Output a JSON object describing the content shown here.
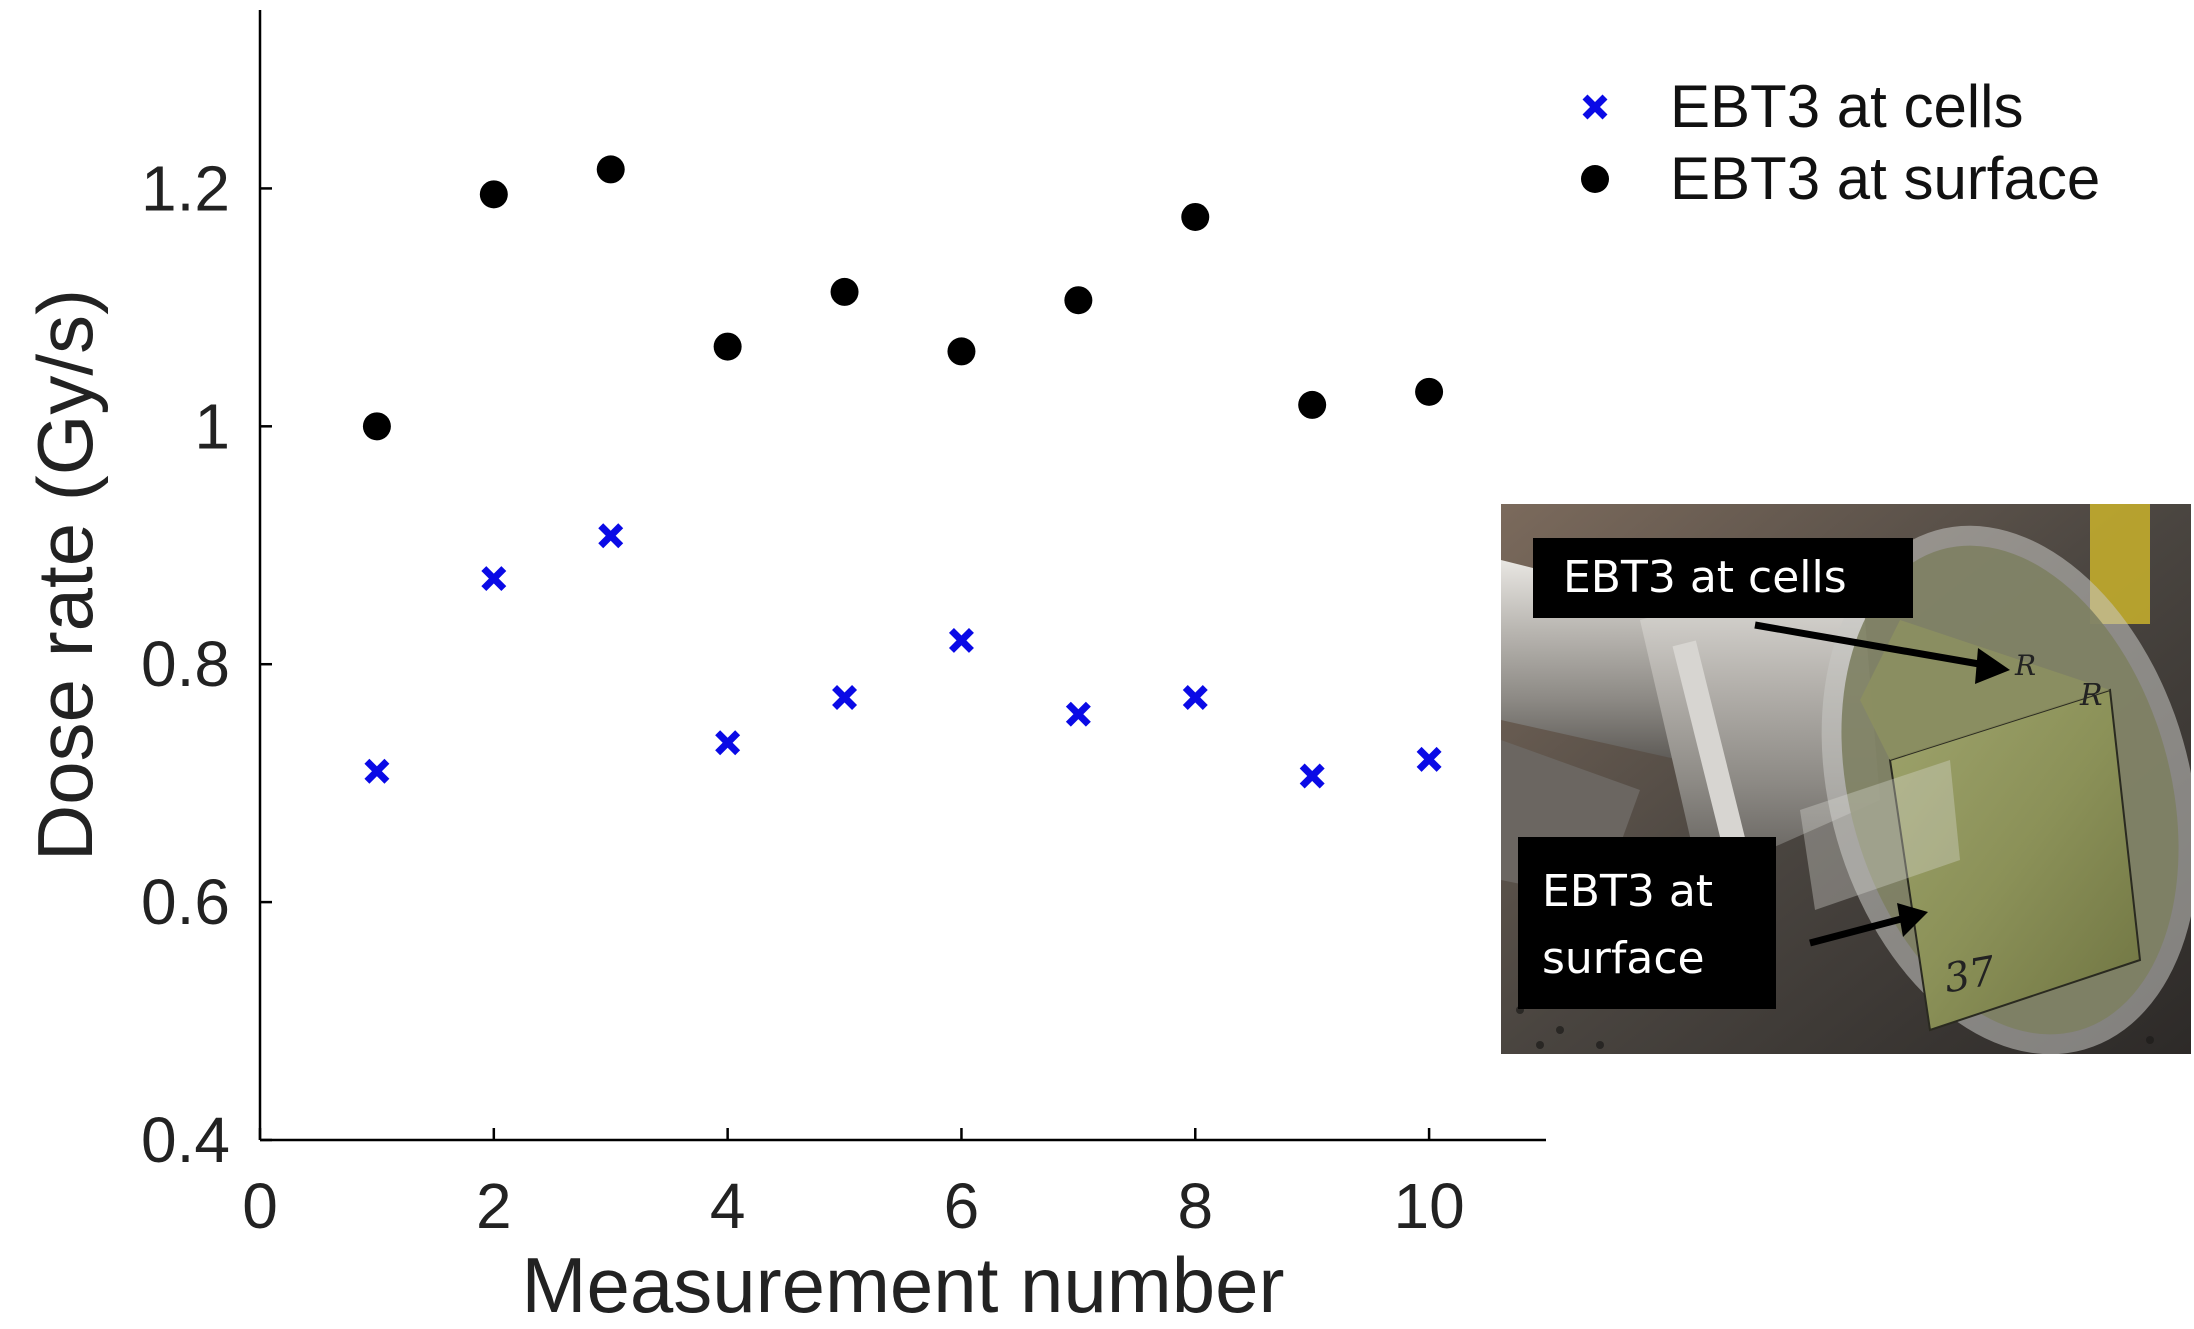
{
  "chart_data": {
    "type": "scatter",
    "xlabel": "Measurement number",
    "ylabel": "Dose rate (Gy/s)",
    "xlim": [
      0,
      11
    ],
    "ylim": [
      0.4,
      1.35
    ],
    "xticks": [
      0,
      2,
      4,
      6,
      8,
      10
    ],
    "xtick_labels": [
      "0",
      "2",
      "4",
      "6",
      "8",
      "10"
    ],
    "yticks": [
      0.4,
      0.6,
      0.8,
      1.0,
      1.2
    ],
    "ytick_labels": [
      "0.4",
      "0.6",
      "0.8",
      "1",
      "1.2"
    ],
    "grid": false,
    "legend_position": "top-right",
    "series": [
      {
        "name": "EBT3 at cells",
        "marker": "x",
        "color": "#0a0ae6",
        "x": [
          1,
          2,
          3,
          4,
          5,
          6,
          7,
          8,
          9,
          10
        ],
        "y": [
          0.71,
          0.872,
          0.908,
          0.734,
          0.772,
          0.82,
          0.758,
          0.772,
          0.706,
          0.72
        ]
      },
      {
        "name": "EBT3 at surface",
        "marker": "o",
        "color": "#000000",
        "x": [
          1,
          2,
          3,
          4,
          5,
          6,
          7,
          8,
          9,
          10
        ],
        "y": [
          1.0,
          1.195,
          1.216,
          1.067,
          1.113,
          1.063,
          1.106,
          1.176,
          1.018,
          1.029
        ]
      }
    ]
  },
  "inset_photo": {
    "label_cells": "EBT3 at cells",
    "label_surface_line1": "EBT3 at",
    "label_surface_line2": "surface",
    "film_marks": [
      "R",
      "R",
      "37"
    ]
  }
}
